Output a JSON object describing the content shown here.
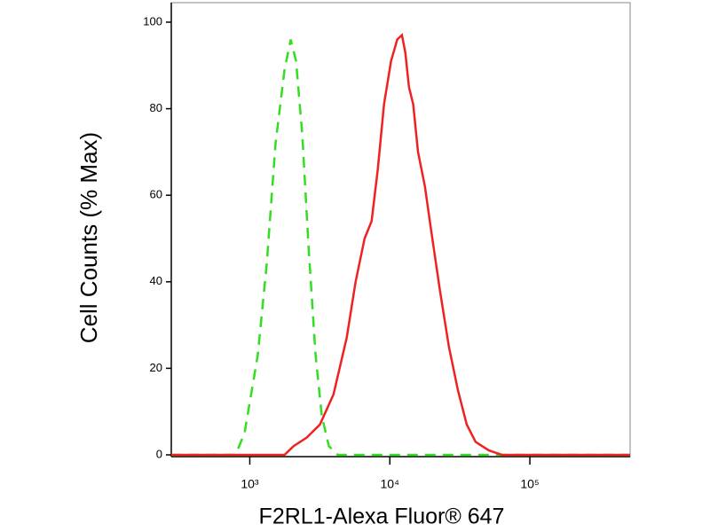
{
  "chart_data": {
    "type": "line",
    "xlabel": "F2RL1-Alexa Fluor® 647",
    "ylabel": "Cell Counts (% Max)",
    "xscale": "log",
    "xlim": [
      275,
      520000
    ],
    "ylim": [
      0,
      100
    ],
    "xticks": [
      {
        "value": 1000,
        "label": "10³"
      },
      {
        "value": 10000,
        "label": "10⁴"
      },
      {
        "value": 100000,
        "label": "10⁵"
      }
    ],
    "yticks": [
      0,
      20,
      40,
      60,
      80,
      100
    ],
    "series": [
      {
        "color": "#33dd22",
        "line_style": "dashed",
        "x": [
          275,
          791,
          916,
          1140,
          1320,
          1528,
          1770,
          1960,
          2140,
          2370,
          2630,
          2950,
          3270,
          3670,
          4250,
          520000
        ],
        "values": [
          0,
          0,
          5,
          23,
          44,
          72,
          89,
          96,
          91,
          74,
          48,
          23,
          9,
          2,
          0,
          0
        ]
      },
      {
        "color": "#ee2222",
        "line_style": "solid",
        "x": [
          275,
          1770,
          2050,
          2550,
          3170,
          3960,
          4920,
          5700,
          6600,
          7410,
          8210,
          9090,
          10200,
          11300,
          12200,
          12900,
          13700,
          14700,
          15900,
          17800,
          19700,
          22800,
          26400,
          30600,
          35400,
          41000,
          51100,
          63500,
          520000
        ],
        "values": [
          0,
          0,
          2,
          4,
          7,
          14,
          27,
          40,
          50,
          54,
          66,
          81,
          91,
          96,
          97,
          93,
          85,
          81,
          70,
          62,
          52,
          38,
          25,
          15,
          7,
          3,
          1,
          0,
          0
        ]
      }
    ]
  }
}
